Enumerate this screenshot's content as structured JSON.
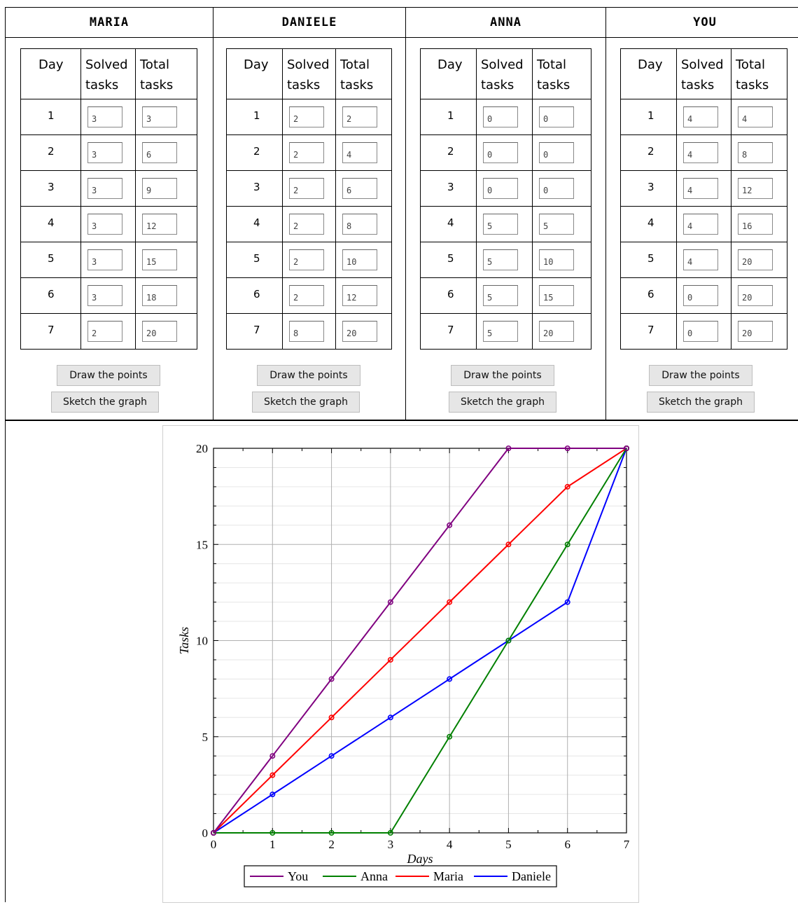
{
  "panels": [
    {
      "name": "MARIA",
      "headers": {
        "day": "Day",
        "solved": "Solved tasks",
        "total": "Total tasks"
      },
      "rows": [
        {
          "day": "1",
          "solved": "3",
          "total": "3"
        },
        {
          "day": "2",
          "solved": "3",
          "total": "6"
        },
        {
          "day": "3",
          "solved": "3",
          "total": "9"
        },
        {
          "day": "4",
          "solved": "3",
          "total": "12"
        },
        {
          "day": "5",
          "solved": "3",
          "total": "15"
        },
        {
          "day": "6",
          "solved": "3",
          "total": "18"
        },
        {
          "day": "7",
          "solved": "2",
          "total": "20"
        }
      ],
      "draw_label": "Draw the points",
      "sketch_label": "Sketch the graph"
    },
    {
      "name": "DANIELE",
      "headers": {
        "day": "Day",
        "solved": "Solved tasks",
        "total": "Total tasks"
      },
      "rows": [
        {
          "day": "1",
          "solved": "2",
          "total": "2"
        },
        {
          "day": "2",
          "solved": "2",
          "total": "4"
        },
        {
          "day": "3",
          "solved": "2",
          "total": "6"
        },
        {
          "day": "4",
          "solved": "2",
          "total": "8"
        },
        {
          "day": "5",
          "solved": "2",
          "total": "10"
        },
        {
          "day": "6",
          "solved": "2",
          "total": "12"
        },
        {
          "day": "7",
          "solved": "8",
          "total": "20"
        }
      ],
      "draw_label": "Draw the points",
      "sketch_label": "Sketch the graph"
    },
    {
      "name": "ANNA",
      "headers": {
        "day": "Day",
        "solved": "Solved tasks",
        "total": "Total tasks"
      },
      "rows": [
        {
          "day": "1",
          "solved": "0",
          "total": "0"
        },
        {
          "day": "2",
          "solved": "0",
          "total": "0"
        },
        {
          "day": "3",
          "solved": "0",
          "total": "0"
        },
        {
          "day": "4",
          "solved": "5",
          "total": "5"
        },
        {
          "day": "5",
          "solved": "5",
          "total": "10"
        },
        {
          "day": "6",
          "solved": "5",
          "total": "15"
        },
        {
          "day": "7",
          "solved": "5",
          "total": "20"
        }
      ],
      "draw_label": "Draw the points",
      "sketch_label": "Sketch the graph"
    },
    {
      "name": "YOU",
      "headers": {
        "day": "Day",
        "solved": "Solved tasks",
        "total": "Total tasks"
      },
      "rows": [
        {
          "day": "1",
          "solved": "4",
          "total": "4"
        },
        {
          "day": "2",
          "solved": "4",
          "total": "8"
        },
        {
          "day": "3",
          "solved": "4",
          "total": "12"
        },
        {
          "day": "4",
          "solved": "4",
          "total": "16"
        },
        {
          "day": "5",
          "solved": "4",
          "total": "20"
        },
        {
          "day": "6",
          "solved": "0",
          "total": "20"
        },
        {
          "day": "7",
          "solved": "0",
          "total": "20"
        }
      ],
      "draw_label": "Draw the points",
      "sketch_label": "Sketch the graph"
    }
  ],
  "chart_data": {
    "type": "line",
    "title": "",
    "xlabel": "Days",
    "ylabel": "Tasks",
    "xlim": [
      0,
      7
    ],
    "ylim": [
      0,
      20
    ],
    "x": [
      0,
      1,
      2,
      3,
      4,
      5,
      6,
      7
    ],
    "xticks": [
      "0",
      "1",
      "2",
      "3",
      "4",
      "5",
      "6",
      "7"
    ],
    "yticks": [
      "0",
      "5",
      "10",
      "15",
      "20"
    ],
    "grid": true,
    "legend": "bottom",
    "series": [
      {
        "name": "You",
        "color": "#800080",
        "values": [
          0,
          4,
          8,
          12,
          16,
          20,
          20,
          20
        ]
      },
      {
        "name": "Anna",
        "color": "#008000",
        "values": [
          0,
          0,
          0,
          0,
          5,
          10,
          15,
          20
        ]
      },
      {
        "name": "Maria",
        "color": "#ff0000",
        "values": [
          0,
          3,
          6,
          9,
          12,
          15,
          18,
          20
        ]
      },
      {
        "name": "Daniele",
        "color": "#0000ff",
        "values": [
          0,
          2,
          4,
          6,
          8,
          10,
          12,
          20
        ]
      }
    ]
  }
}
